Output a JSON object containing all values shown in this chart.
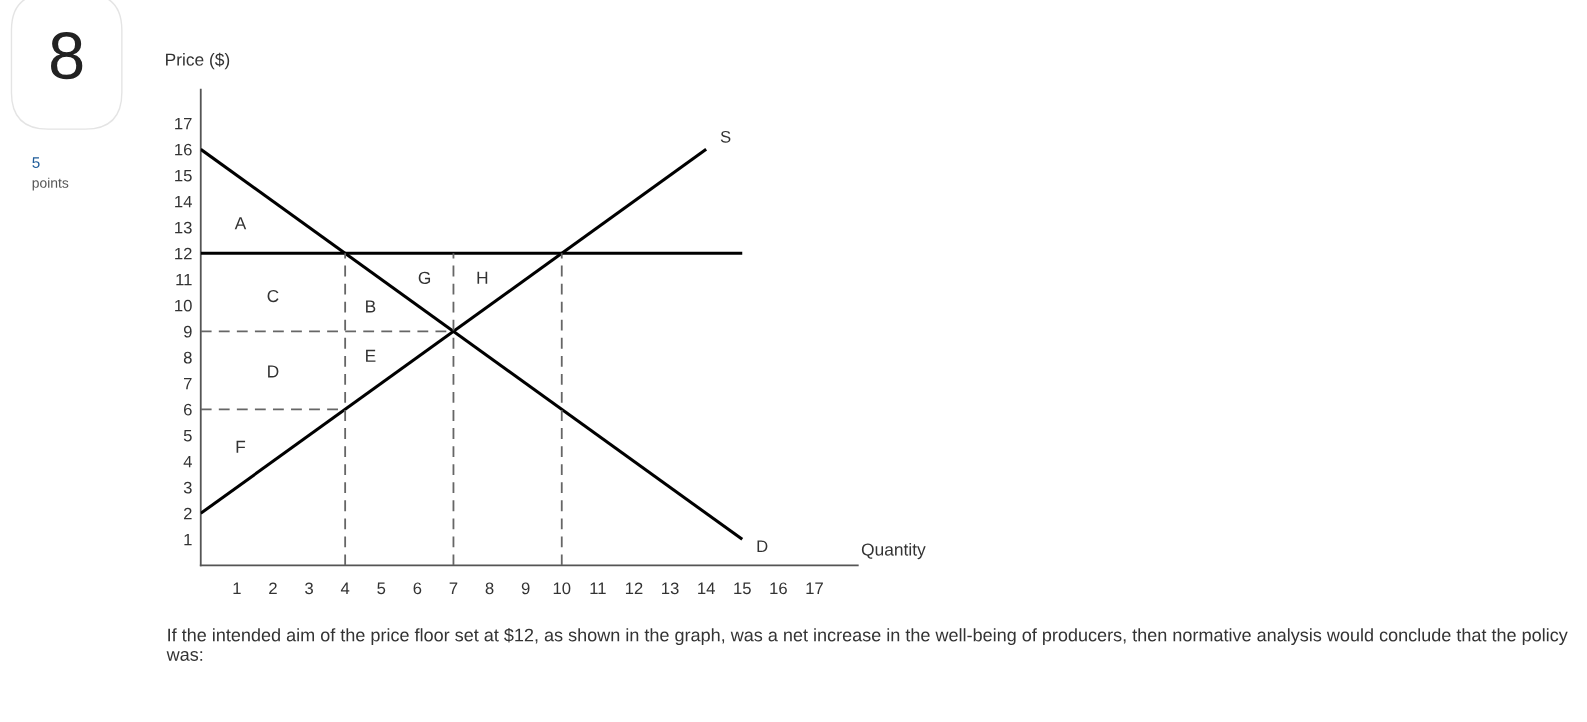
{
  "chart_data": {
    "type": "line",
    "xlabel": "Quantity",
    "ylabel": "Price ($)",
    "xlim": [
      0,
      18.2
    ],
    "ylim": [
      0,
      18.3
    ],
    "xticks": [
      1,
      2,
      3,
      4,
      5,
      6,
      7,
      8,
      9,
      10,
      11,
      12,
      13,
      14,
      15,
      16,
      17
    ],
    "yticks": [
      1,
      2,
      3,
      4,
      5,
      6,
      7,
      8,
      9,
      10,
      11,
      12,
      13,
      14,
      15,
      16,
      17
    ],
    "grid": false,
    "marker": "none",
    "series": [
      {
        "name": "D",
        "color": "#000000",
        "line_style": "solid",
        "x": [
          0,
          15
        ],
        "values": [
          16,
          1
        ]
      },
      {
        "name": "S",
        "color": "#000000",
        "line_style": "solid",
        "x": [
          0,
          14
        ],
        "values": [
          2,
          16
        ]
      },
      {
        "color": "#000000",
        "line_style": "solid",
        "x": [
          0,
          15
        ],
        "values": [
          12,
          12
        ]
      },
      {
        "color": "#666666",
        "line_style": "dashed",
        "x": [
          4,
          4
        ],
        "values": [
          0,
          12
        ]
      },
      {
        "color": "#666666",
        "line_style": "dashed",
        "x": [
          7,
          7
        ],
        "values": [
          0,
          12
        ]
      },
      {
        "color": "#666666",
        "line_style": "dashed",
        "x": [
          10,
          10
        ],
        "values": [
          0,
          12
        ]
      },
      {
        "color": "#666666",
        "line_style": "dashed",
        "x": [
          0,
          7
        ],
        "values": [
          9,
          9
        ]
      },
      {
        "color": "#666666",
        "line_style": "dashed",
        "x": [
          0,
          4
        ],
        "values": [
          6,
          6
        ]
      }
    ],
    "annotations": [
      "8",
      "5",
      "points",
      "If the intended aim of the price floor set at $12, as shown in the graph, was a net increase in the well-being of producers, then normative analysis would conclude that the policy was:",
      "A",
      "C",
      "D",
      "F",
      "B",
      "E",
      "G",
      "H"
    ]
  }
}
